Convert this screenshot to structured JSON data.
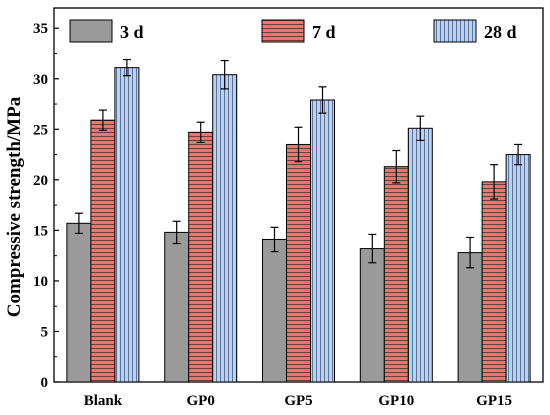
{
  "chart_data": {
    "type": "bar",
    "categories": [
      "Blank",
      "GP0",
      "GP5",
      "GP10",
      "GP15"
    ],
    "series": [
      {
        "name": "3 d",
        "values": [
          15.7,
          14.8,
          14.1,
          13.2,
          12.8
        ],
        "errors": [
          1.0,
          1.1,
          1.2,
          1.4,
          1.5
        ],
        "color": "#9a9a9a",
        "pattern": "none"
      },
      {
        "name": "7 d",
        "values": [
          25.9,
          24.7,
          23.5,
          21.3,
          19.8
        ],
        "errors": [
          1.0,
          1.0,
          1.7,
          1.6,
          1.7
        ],
        "color": "#f07474",
        "pattern": "horizontal"
      },
      {
        "name": "28 d",
        "values": [
          31.1,
          30.4,
          27.9,
          25.1,
          22.5
        ],
        "errors": [
          0.8,
          1.4,
          1.3,
          1.2,
          1.0
        ],
        "color": "#b8d2f5",
        "pattern": "vertical"
      }
    ],
    "ylabel": "Compressive strength/MPa",
    "xlabel": "",
    "ylim": [
      0,
      37
    ],
    "yticks": [
      0,
      5,
      10,
      15,
      20,
      25,
      30,
      35
    ],
    "legend_position": "top",
    "grid": false
  }
}
